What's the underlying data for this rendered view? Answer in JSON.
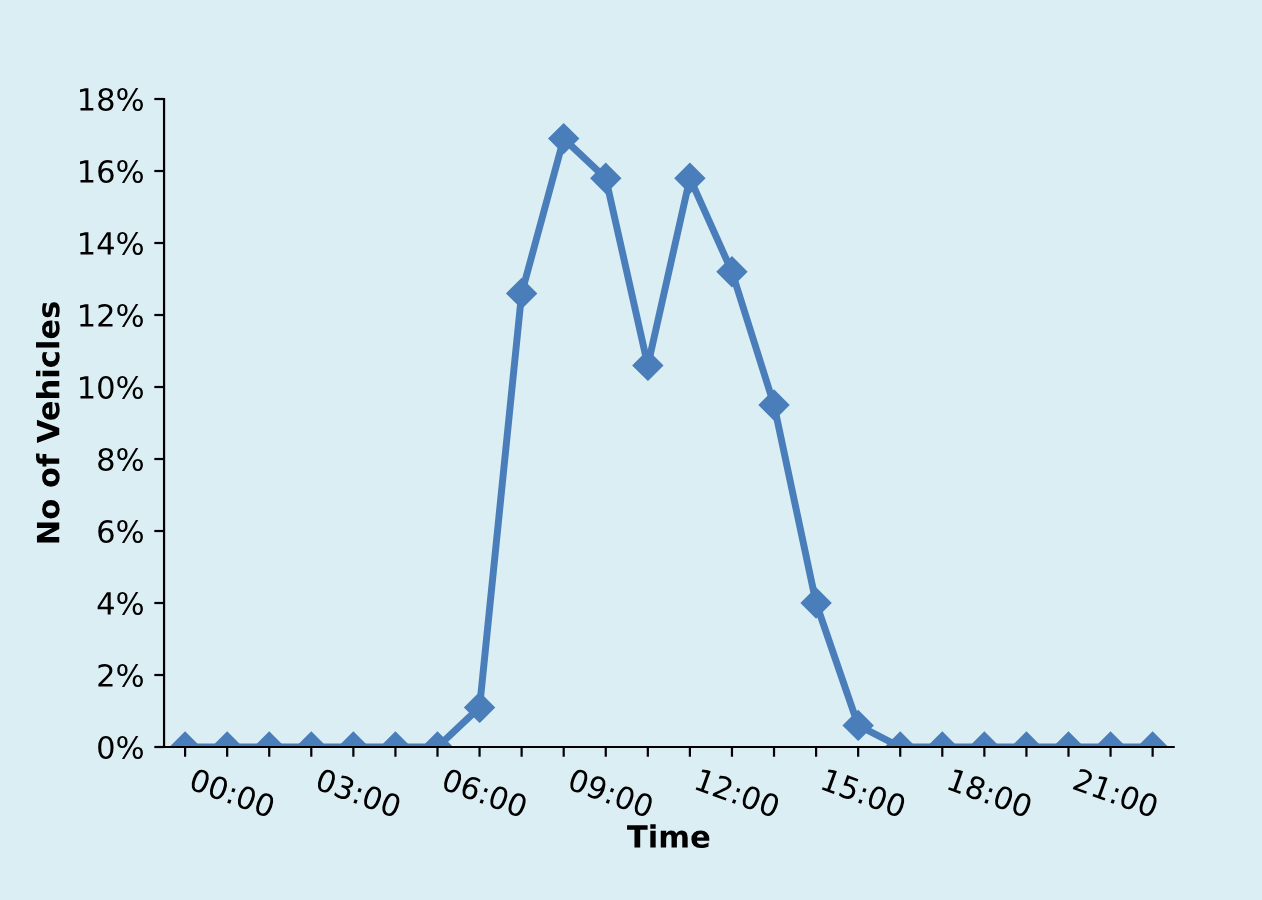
{
  "chart_data": {
    "type": "line",
    "xlabel": "Time",
    "ylabel": "No of Vehicles",
    "categories": [
      "00:00",
      null,
      null,
      "03:00",
      null,
      null,
      "06:00",
      null,
      null,
      "09:00",
      null,
      null,
      "12:00",
      null,
      null,
      "15:00",
      null,
      null,
      "18:00",
      null,
      null,
      "21:00",
      null,
      null
    ],
    "series": [
      {
        "color": "#4a7ebb",
        "values": [
          0,
          0,
          0,
          0,
          0,
          0,
          0,
          1.1,
          12.6,
          16.9,
          15.8,
          10.6,
          15.8,
          13.2,
          9.5,
          4.0,
          0.6,
          0,
          0,
          0,
          0,
          0,
          0,
          0
        ]
      }
    ],
    "ylim": [
      0,
      18
    ],
    "yticks": [
      {
        "value": 0,
        "label": "0%"
      },
      {
        "value": 2,
        "label": "2%"
      },
      {
        "value": 4,
        "label": "4%"
      },
      {
        "value": 6,
        "label": "6%"
      },
      {
        "value": 8,
        "label": "8%"
      },
      {
        "value": 10,
        "label": "10%"
      },
      {
        "value": 12,
        "label": "12%"
      },
      {
        "value": 14,
        "label": "14%"
      },
      {
        "value": 16,
        "label": "16%"
      },
      {
        "value": 18,
        "label": "18%"
      }
    ],
    "marker": "diamond",
    "line_style": "solid",
    "grid": false,
    "legend": false
  }
}
